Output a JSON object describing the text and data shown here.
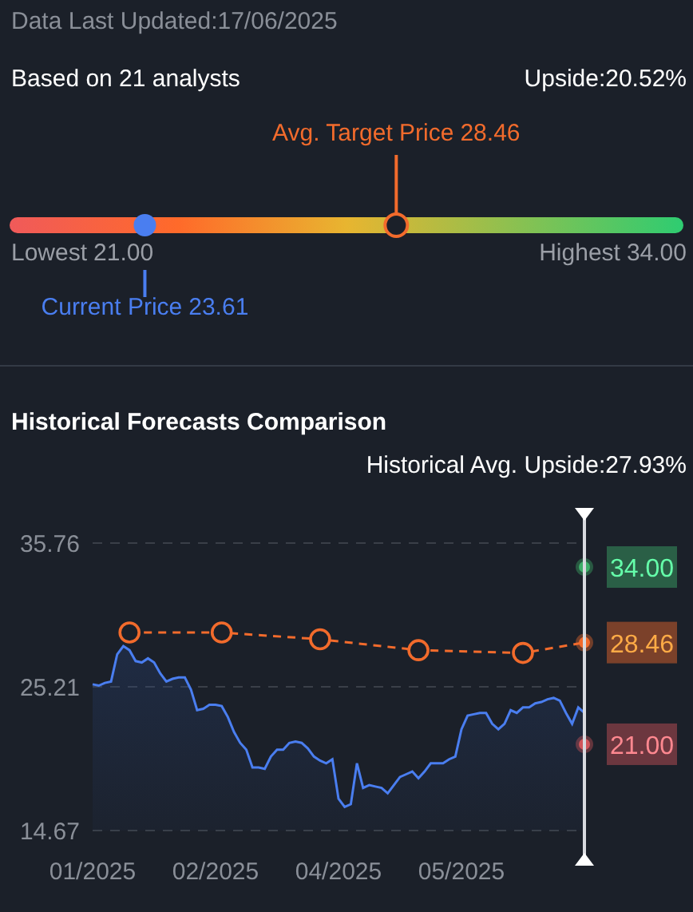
{
  "chart_data": [
    {
      "type": "other",
      "annotations": [
        "Data Last Updated:17/06/2025",
        "Based on 21 analysts",
        "Upside:20.52%"
      ],
      "categories": [
        "Lowest",
        "Current Price",
        "Avg. Target Price",
        "Highest"
      ],
      "values": [
        21.0,
        23.61,
        28.46,
        34.0
      ],
      "value_labels": [
        "21.00",
        "23.61",
        "28.46",
        "34.00"
      ],
      "colors": [
        "#9a9ea6",
        "#4a7ef0",
        "#f26b2c",
        "#9a9ea6"
      ]
    },
    {
      "type": "line",
      "title": "Historical Forecasts Comparison",
      "subtitle": "Historical Avg. Upside:27.93%",
      "grid": "y",
      "ylim": [
        14.67,
        35.76
      ],
      "yticks": [
        14.67,
        25.21,
        35.76
      ],
      "categories": [
        "01/2025",
        null,
        null,
        null,
        null,
        null,
        null,
        null,
        null,
        null,
        null,
        null,
        null,
        null,
        null,
        null,
        null,
        null,
        null,
        null,
        "02/2025",
        null,
        null,
        null,
        null,
        null,
        null,
        null,
        null,
        null,
        null,
        null,
        null,
        null,
        null,
        null,
        null,
        null,
        null,
        null,
        "04/2025",
        null,
        null,
        null,
        null,
        null,
        null,
        null,
        null,
        null,
        null,
        null,
        null,
        null,
        null,
        null,
        null,
        null,
        null,
        null,
        "05/2025",
        null,
        null,
        null,
        null,
        null,
        null,
        null,
        null,
        null,
        null,
        null,
        null,
        null,
        null,
        null,
        null,
        null,
        null,
        null,
        null
      ],
      "series": [
        {
          "type": "area",
          "color": "#4a7ef0",
          "values": [
            25.4,
            25.3,
            25.5,
            25.6,
            27.6,
            28.2,
            27.9,
            27.1,
            27.0,
            27.3,
            27.0,
            26.2,
            25.6,
            25.8,
            25.9,
            25.9,
            25.0,
            23.5,
            23.6,
            23.9,
            23.9,
            23.8,
            23.0,
            21.9,
            21.1,
            20.6,
            19.3,
            19.3,
            19.2,
            20.1,
            20.6,
            20.6,
            21.1,
            21.2,
            21.1,
            20.7,
            20.1,
            19.8,
            19.6,
            19.9,
            17.0,
            16.4,
            16.6,
            19.6,
            17.8,
            18.0,
            17.9,
            17.8,
            17.4,
            18.0,
            18.6,
            18.8,
            19.0,
            18.5,
            19.0,
            19.6,
            19.6,
            19.6,
            19.9,
            20.1,
            22.1,
            23.1,
            23.2,
            23.3,
            23.3,
            22.5,
            22.1,
            22.5,
            23.5,
            23.3,
            23.7,
            23.7,
            24.0,
            24.1,
            24.3,
            24.4,
            24.2,
            23.3,
            22.5,
            23.7,
            23.3
          ]
        },
        {
          "type": "line",
          "color": "#f26b2c",
          "line_style": "dashed",
          "marker": "circle",
          "values": [
            null,
            null,
            null,
            null,
            null,
            null,
            29.2,
            null,
            null,
            null,
            null,
            null,
            null,
            null,
            null,
            null,
            null,
            null,
            null,
            null,
            null,
            29.2,
            null,
            null,
            null,
            null,
            null,
            null,
            null,
            null,
            null,
            null,
            null,
            null,
            null,
            null,
            null,
            28.7,
            null,
            null,
            null,
            null,
            null,
            null,
            null,
            null,
            null,
            null,
            null,
            null,
            null,
            null,
            null,
            27.9,
            null,
            null,
            null,
            null,
            null,
            null,
            null,
            null,
            null,
            null,
            null,
            null,
            null,
            null,
            null,
            null,
            27.7,
            null,
            null,
            null,
            null,
            null,
            null,
            null,
            null,
            null,
            28.46
          ],
          "value_labels": [
            null,
            null,
            null,
            null,
            null,
            null,
            null,
            null,
            null,
            null,
            null,
            null,
            null,
            null,
            null,
            null,
            null,
            null,
            null,
            null,
            null,
            null,
            null,
            null,
            null,
            null,
            null,
            null,
            null,
            null,
            null,
            null,
            null,
            null,
            null,
            null,
            null,
            null,
            null,
            null,
            null,
            null,
            null,
            null,
            null,
            null,
            null,
            null,
            null,
            null,
            null,
            null,
            null,
            null,
            null,
            null,
            null,
            null,
            null,
            null,
            null,
            null,
            null,
            null,
            null,
            null,
            null,
            null,
            null,
            null,
            null,
            null,
            null,
            null,
            null,
            null,
            null,
            null,
            null,
            null,
            "28.46"
          ]
        },
        {
          "type": "scatter",
          "color": "#3fae6a",
          "values": [
            null,
            null,
            null,
            null,
            null,
            null,
            null,
            null,
            null,
            null,
            null,
            null,
            null,
            null,
            null,
            null,
            null,
            null,
            null,
            null,
            null,
            null,
            null,
            null,
            null,
            null,
            null,
            null,
            null,
            null,
            null,
            null,
            null,
            null,
            null,
            null,
            null,
            null,
            null,
            null,
            null,
            null,
            null,
            null,
            null,
            null,
            null,
            null,
            null,
            null,
            null,
            null,
            null,
            null,
            null,
            null,
            null,
            null,
            null,
            null,
            null,
            null,
            null,
            null,
            null,
            null,
            null,
            null,
            null,
            null,
            null,
            null,
            null,
            null,
            null,
            null,
            null,
            null,
            null,
            null,
            34.0
          ],
          "value_labels": [
            null,
            null,
            null,
            null,
            null,
            null,
            null,
            null,
            null,
            null,
            null,
            null,
            null,
            null,
            null,
            null,
            null,
            null,
            null,
            null,
            null,
            null,
            null,
            null,
            null,
            null,
            null,
            null,
            null,
            null,
            null,
            null,
            null,
            null,
            null,
            null,
            null,
            null,
            null,
            null,
            null,
            null,
            null,
            null,
            null,
            null,
            null,
            null,
            null,
            null,
            null,
            null,
            null,
            null,
            null,
            null,
            null,
            null,
            null,
            null,
            null,
            null,
            null,
            null,
            null,
            null,
            null,
            null,
            null,
            null,
            null,
            null,
            null,
            null,
            null,
            null,
            null,
            null,
            null,
            null,
            "34.00"
          ]
        },
        {
          "type": "scatter",
          "color": "#d0555a",
          "values": [
            null,
            null,
            null,
            null,
            null,
            null,
            null,
            null,
            null,
            null,
            null,
            null,
            null,
            null,
            null,
            null,
            null,
            null,
            null,
            null,
            null,
            null,
            null,
            null,
            null,
            null,
            null,
            null,
            null,
            null,
            null,
            null,
            null,
            null,
            null,
            null,
            null,
            null,
            null,
            null,
            null,
            null,
            null,
            null,
            null,
            null,
            null,
            null,
            null,
            null,
            null,
            null,
            null,
            null,
            null,
            null,
            null,
            null,
            null,
            null,
            null,
            null,
            null,
            null,
            null,
            null,
            null,
            null,
            null,
            null,
            null,
            null,
            null,
            null,
            null,
            null,
            null,
            null,
            null,
            null,
            21.0
          ],
          "value_labels": [
            null,
            null,
            null,
            null,
            null,
            null,
            null,
            null,
            null,
            null,
            null,
            null,
            null,
            null,
            null,
            null,
            null,
            null,
            null,
            null,
            null,
            null,
            null,
            null,
            null,
            null,
            null,
            null,
            null,
            null,
            null,
            null,
            null,
            null,
            null,
            null,
            null,
            null,
            null,
            null,
            null,
            null,
            null,
            null,
            null,
            null,
            null,
            null,
            null,
            null,
            null,
            null,
            null,
            null,
            null,
            null,
            null,
            null,
            null,
            null,
            null,
            null,
            null,
            null,
            null,
            null,
            null,
            null,
            null,
            null,
            null,
            null,
            null,
            null,
            null,
            null,
            null,
            null,
            null,
            null,
            "21.00"
          ]
        }
      ]
    }
  ]
}
